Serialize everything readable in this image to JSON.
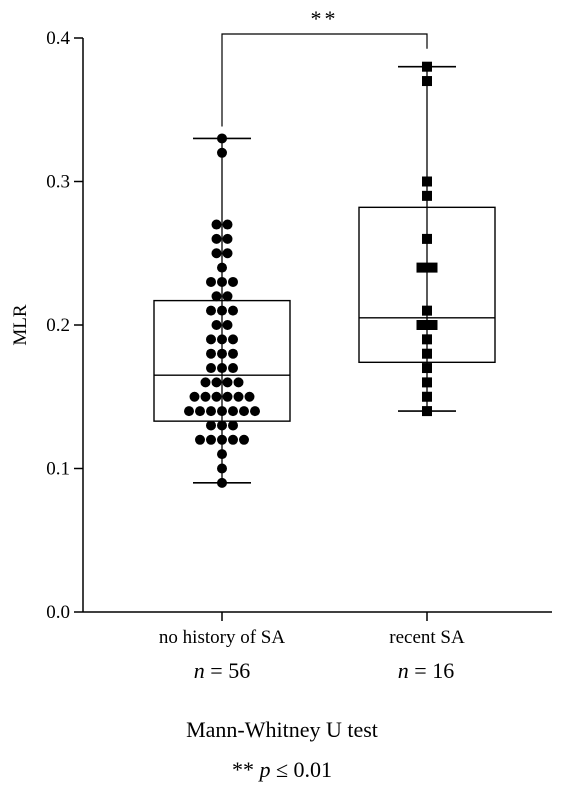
{
  "chart_data": {
    "type": "box",
    "ylabel": "MLR",
    "ylim": [
      0,
      0.4
    ],
    "yticks": [
      0.0,
      0.1,
      0.2,
      0.3,
      0.4
    ],
    "ytick_labels": [
      "0.0",
      "0.1",
      "0.2",
      "0.3",
      "0.4"
    ],
    "categories": [
      "no history of SA",
      "recent SA"
    ],
    "series": [
      {
        "name": "no history of SA",
        "n_label": "56",
        "marker": "circle",
        "min": 0.09,
        "q1": 0.133,
        "median": 0.165,
        "q3": 0.217,
        "max": 0.33,
        "points": [
          0.33,
          0.32,
          0.27,
          0.27,
          0.26,
          0.26,
          0.25,
          0.25,
          0.24,
          0.23,
          0.23,
          0.23,
          0.22,
          0.22,
          0.21,
          0.21,
          0.21,
          0.2,
          0.2,
          0.19,
          0.19,
          0.19,
          0.18,
          0.18,
          0.18,
          0.17,
          0.17,
          0.17,
          0.16,
          0.16,
          0.16,
          0.16,
          0.15,
          0.15,
          0.15,
          0.15,
          0.15,
          0.15,
          0.14,
          0.14,
          0.14,
          0.14,
          0.14,
          0.14,
          0.14,
          0.13,
          0.13,
          0.13,
          0.12,
          0.12,
          0.12,
          0.12,
          0.12,
          0.11,
          0.1,
          0.09
        ]
      },
      {
        "name": "recent SA",
        "n_label": "16",
        "marker": "square",
        "min": 0.14,
        "q1": 0.174,
        "median": 0.205,
        "q3": 0.282,
        "max": 0.38,
        "points": [
          0.38,
          0.37,
          0.3,
          0.29,
          0.26,
          0.24,
          0.24,
          0.21,
          0.2,
          0.2,
          0.19,
          0.18,
          0.17,
          0.16,
          0.15,
          0.14
        ]
      }
    ],
    "significance": {
      "between": [
        0,
        1
      ],
      "label": "**"
    }
  },
  "footer": {
    "test_name": "Mann-Whitney U test",
    "note_stars": "**",
    "note_p": "p",
    "note_rest": " ≤ 0.01"
  },
  "n_prefix": "n",
  "n_equals": " = "
}
